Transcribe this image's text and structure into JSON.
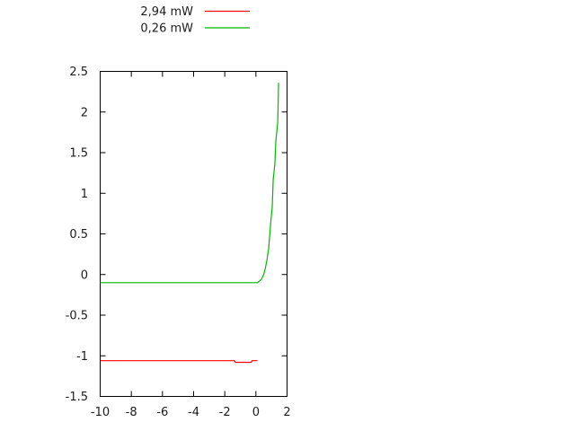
{
  "window": {
    "background": "#ffffff",
    "border_color": "#000000",
    "text_color": "#1c1c1c"
  },
  "chart_data": {
    "type": "line",
    "title": "",
    "xlabel": "",
    "ylabel": "",
    "xlim": [
      -10,
      2
    ],
    "ylim": [
      -1.5,
      2.5
    ],
    "grid": false,
    "tick_style": "inward-mirrored",
    "legend_position": "above-plot-top-left",
    "x_tick_values": [
      -10,
      -8,
      -6,
      -4,
      -2,
      0,
      2
    ],
    "x_tick_labels": [
      "-10",
      "-8",
      "-6",
      "-4",
      "-2",
      "0",
      "2"
    ],
    "y_tick_values": [
      -1.5,
      -1,
      -0.5,
      0,
      0.5,
      1,
      1.5,
      2,
      2.5
    ],
    "y_tick_labels": [
      "-1.5",
      "-1",
      "-0.5",
      "0",
      "0.5",
      "1",
      "1.5",
      "2",
      "2.5"
    ],
    "series": [
      {
        "name": "2,94 mW",
        "color": "#ff0000",
        "points": [
          [
            -10,
            -1.06
          ],
          [
            -1.38,
            -1.06
          ],
          [
            -1.32,
            -1.08
          ],
          [
            -0.3,
            -1.08
          ],
          [
            -0.25,
            -1.06
          ],
          [
            0.1,
            -1.06
          ]
        ]
      },
      {
        "name": "0,26 mW",
        "color": "#00b800",
        "points": [
          [
            -10,
            -0.1
          ],
          [
            0.1,
            -0.1
          ],
          [
            0.35,
            -0.06
          ],
          [
            0.5,
            0.0
          ],
          [
            0.6,
            0.07
          ],
          [
            0.7,
            0.17
          ],
          [
            0.82,
            0.32
          ],
          [
            0.88,
            0.47
          ],
          [
            0.97,
            0.67
          ],
          [
            1.05,
            0.83
          ],
          [
            1.11,
            1.17
          ],
          [
            1.22,
            1.37
          ],
          [
            1.28,
            1.64
          ],
          [
            1.4,
            1.87
          ],
          [
            1.43,
            2.1
          ],
          [
            1.45,
            2.36
          ]
        ]
      }
    ]
  }
}
